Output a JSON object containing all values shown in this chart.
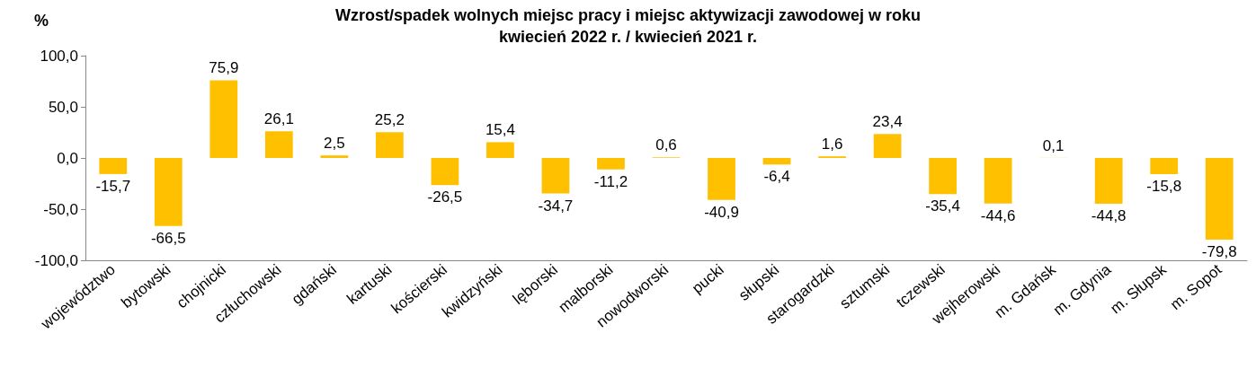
{
  "chart_data": {
    "type": "bar",
    "title": "Wzrost/spadek wolnych miejsc pracy i miejsc aktywizacji zawodowej w roku\nkwiecień 2022 r. / kwiecień 2021 r.",
    "ylabel": "%",
    "categories": [
      "województwo",
      "bytowski",
      "chojnicki",
      "człuchowski",
      "gdański",
      "kartuski",
      "kościerski",
      "kwidzyński",
      "lęborski",
      "malborski",
      "nowodworski",
      "pucki",
      "słupski",
      "starogardzki",
      "sztumski",
      "tczewski",
      "wejherowski",
      "m. Gdańsk",
      "m. Gdynia",
      "m. Słupsk",
      "m. Sopot"
    ],
    "values": [
      -15.7,
      -66.5,
      75.9,
      26.1,
      2.5,
      25.2,
      -26.5,
      15.4,
      -34.7,
      -11.2,
      0.6,
      -40.9,
      -6.4,
      1.6,
      23.4,
      -35.4,
      -44.6,
      0.1,
      -44.8,
      -15.8,
      -79.8
    ],
    "value_labels": [
      "-15,7",
      "-66,5",
      "75,9",
      "26,1",
      "2,5",
      "25,2",
      "-26,5",
      "15,4",
      "-34,7",
      "-11,2",
      "0,6",
      "-40,9",
      "-6,4",
      "1,6",
      "23,4",
      "-35,4",
      "-44,6",
      "0,1",
      "-44,8",
      "-15,8",
      "-79,8"
    ],
    "color": "#ffc000",
    "ylim": [
      -100,
      100
    ],
    "yticks": [
      {
        "value": -100,
        "label": "-100,0"
      },
      {
        "value": -50,
        "label": "-50,0"
      },
      {
        "value": 0,
        "label": "0,0"
      },
      {
        "value": 50,
        "label": "50,0"
      },
      {
        "value": 100,
        "label": "100,0"
      }
    ],
    "grid": false
  }
}
